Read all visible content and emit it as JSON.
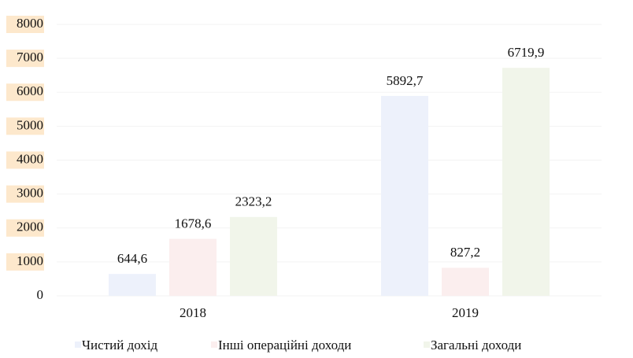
{
  "chart_data": {
    "type": "bar",
    "categories": [
      "2018",
      "2019"
    ],
    "series": [
      {
        "name": "Чистий дохід",
        "color": "#edf1fb",
        "values": [
          644.6,
          5892.7
        ],
        "value_labels": [
          "644,6",
          "5892,7"
        ]
      },
      {
        "name": "Інші операційні доходи",
        "color": "#fbeeee",
        "values": [
          1678.6,
          827.2
        ],
        "value_labels": [
          "1678,6",
          "827,2"
        ]
      },
      {
        "name": "Загальні доходи",
        "color": "#f1f5ea",
        "values": [
          2323.2,
          6719.9
        ],
        "value_labels": [
          "2323,2",
          "6719,9"
        ]
      }
    ],
    "ylim": [
      0,
      8000
    ],
    "yticks": [
      0,
      1000,
      2000,
      3000,
      4000,
      5000,
      6000,
      7000,
      8000
    ],
    "grid": true,
    "legend": "bottom"
  }
}
